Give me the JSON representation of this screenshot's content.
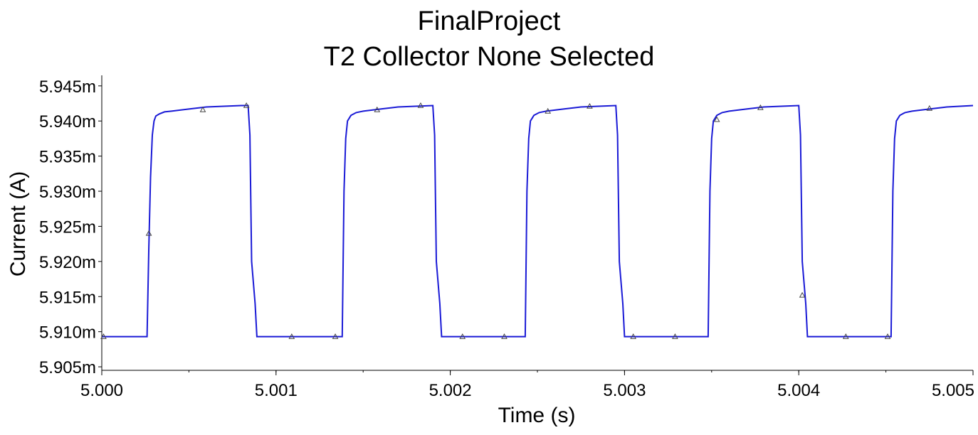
{
  "chart_data": {
    "type": "line",
    "title": "FinalProject",
    "subtitle": "T2 Collector None Selected",
    "xlabel": "Time (s)",
    "ylabel": "Current (A)",
    "xlim": [
      5.0,
      5.005
    ],
    "ylim": [
      5.9045,
      5.9465
    ],
    "x_ticks": [
      "5.000",
      "5.001",
      "5.002",
      "5.003",
      "5.004",
      "5.005"
    ],
    "y_ticks": [
      "5.905m",
      "5.910m",
      "5.915m",
      "5.920m",
      "5.925m",
      "5.930m",
      "5.935m",
      "5.940m",
      "5.945m"
    ],
    "grid": false,
    "colors": {
      "series": "#1a1ad6",
      "marker": "#444444",
      "axis": "#000000"
    },
    "series": [
      {
        "x": [
          5.0,
          5.00026,
          5.00027,
          5.00028,
          5.00029,
          5.0003,
          5.00031,
          5.00033,
          5.00036,
          5.0004,
          5.0005,
          5.0006,
          5.0007,
          5.0008,
          5.00084,
          5.00085,
          5.00086,
          5.00088,
          5.00089,
          5.001,
          5.00138,
          5.00139,
          5.0014,
          5.00141,
          5.00143,
          5.00146,
          5.0015,
          5.0016,
          5.0017,
          5.0018,
          5.0019,
          5.00191,
          5.00192,
          5.00194,
          5.00195,
          5.002,
          5.00243,
          5.00244,
          5.00245,
          5.00246,
          5.00248,
          5.00251,
          5.00255,
          5.00265,
          5.00275,
          5.00285,
          5.00295,
          5.00296,
          5.00297,
          5.00299,
          5.003,
          5.0031,
          5.00348,
          5.00349,
          5.0035,
          5.00351,
          5.00353,
          5.00356,
          5.0036,
          5.0037,
          5.0038,
          5.0039,
          5.004,
          5.00401,
          5.00402,
          5.00404,
          5.00405,
          5.0042,
          5.00453,
          5.00454,
          5.00455,
          5.00456,
          5.00458,
          5.00461,
          5.00465,
          5.00475,
          5.00485,
          5.005
        ],
        "y": [
          5.9093,
          5.9093,
          5.922,
          5.932,
          5.938,
          5.94,
          5.9407,
          5.941,
          5.9413,
          5.9414,
          5.9417,
          5.942,
          5.9421,
          5.9422,
          5.9422,
          5.938,
          5.92,
          5.914,
          5.9093,
          5.9093,
          5.9093,
          5.93,
          5.9375,
          5.94,
          5.9408,
          5.9412,
          5.9414,
          5.9417,
          5.942,
          5.9421,
          5.9422,
          5.938,
          5.92,
          5.914,
          5.9093,
          5.9093,
          5.9093,
          5.93,
          5.9375,
          5.94,
          5.9408,
          5.9412,
          5.9414,
          5.9417,
          5.942,
          5.9421,
          5.9422,
          5.938,
          5.92,
          5.914,
          5.9093,
          5.9093,
          5.9093,
          5.93,
          5.9375,
          5.94,
          5.9408,
          5.9412,
          5.9414,
          5.9417,
          5.942,
          5.9421,
          5.9422,
          5.938,
          5.92,
          5.914,
          5.9093,
          5.9093,
          5.9093,
          5.93,
          5.9375,
          5.94,
          5.9408,
          5.9412,
          5.9414,
          5.9417,
          5.942,
          5.9422
        ]
      }
    ],
    "markers": {
      "symbol": "triangle",
      "x": [
        5.00001,
        5.00027,
        5.00058,
        5.00083,
        5.00109,
        5.00134,
        5.00158,
        5.00183,
        5.00207,
        5.00231,
        5.00256,
        5.0028,
        5.00305,
        5.00329,
        5.00353,
        5.00378,
        5.00402,
        5.00427,
        5.00451,
        5.00475
      ],
      "y": [
        5.9093,
        5.924,
        5.9416,
        5.9422,
        5.9093,
        5.9093,
        5.9416,
        5.9422,
        5.9093,
        5.9093,
        5.9414,
        5.9421,
        5.9093,
        5.9093,
        5.9402,
        5.9419,
        5.9152,
        5.9093,
        5.9093,
        5.9418
      ]
    }
  }
}
